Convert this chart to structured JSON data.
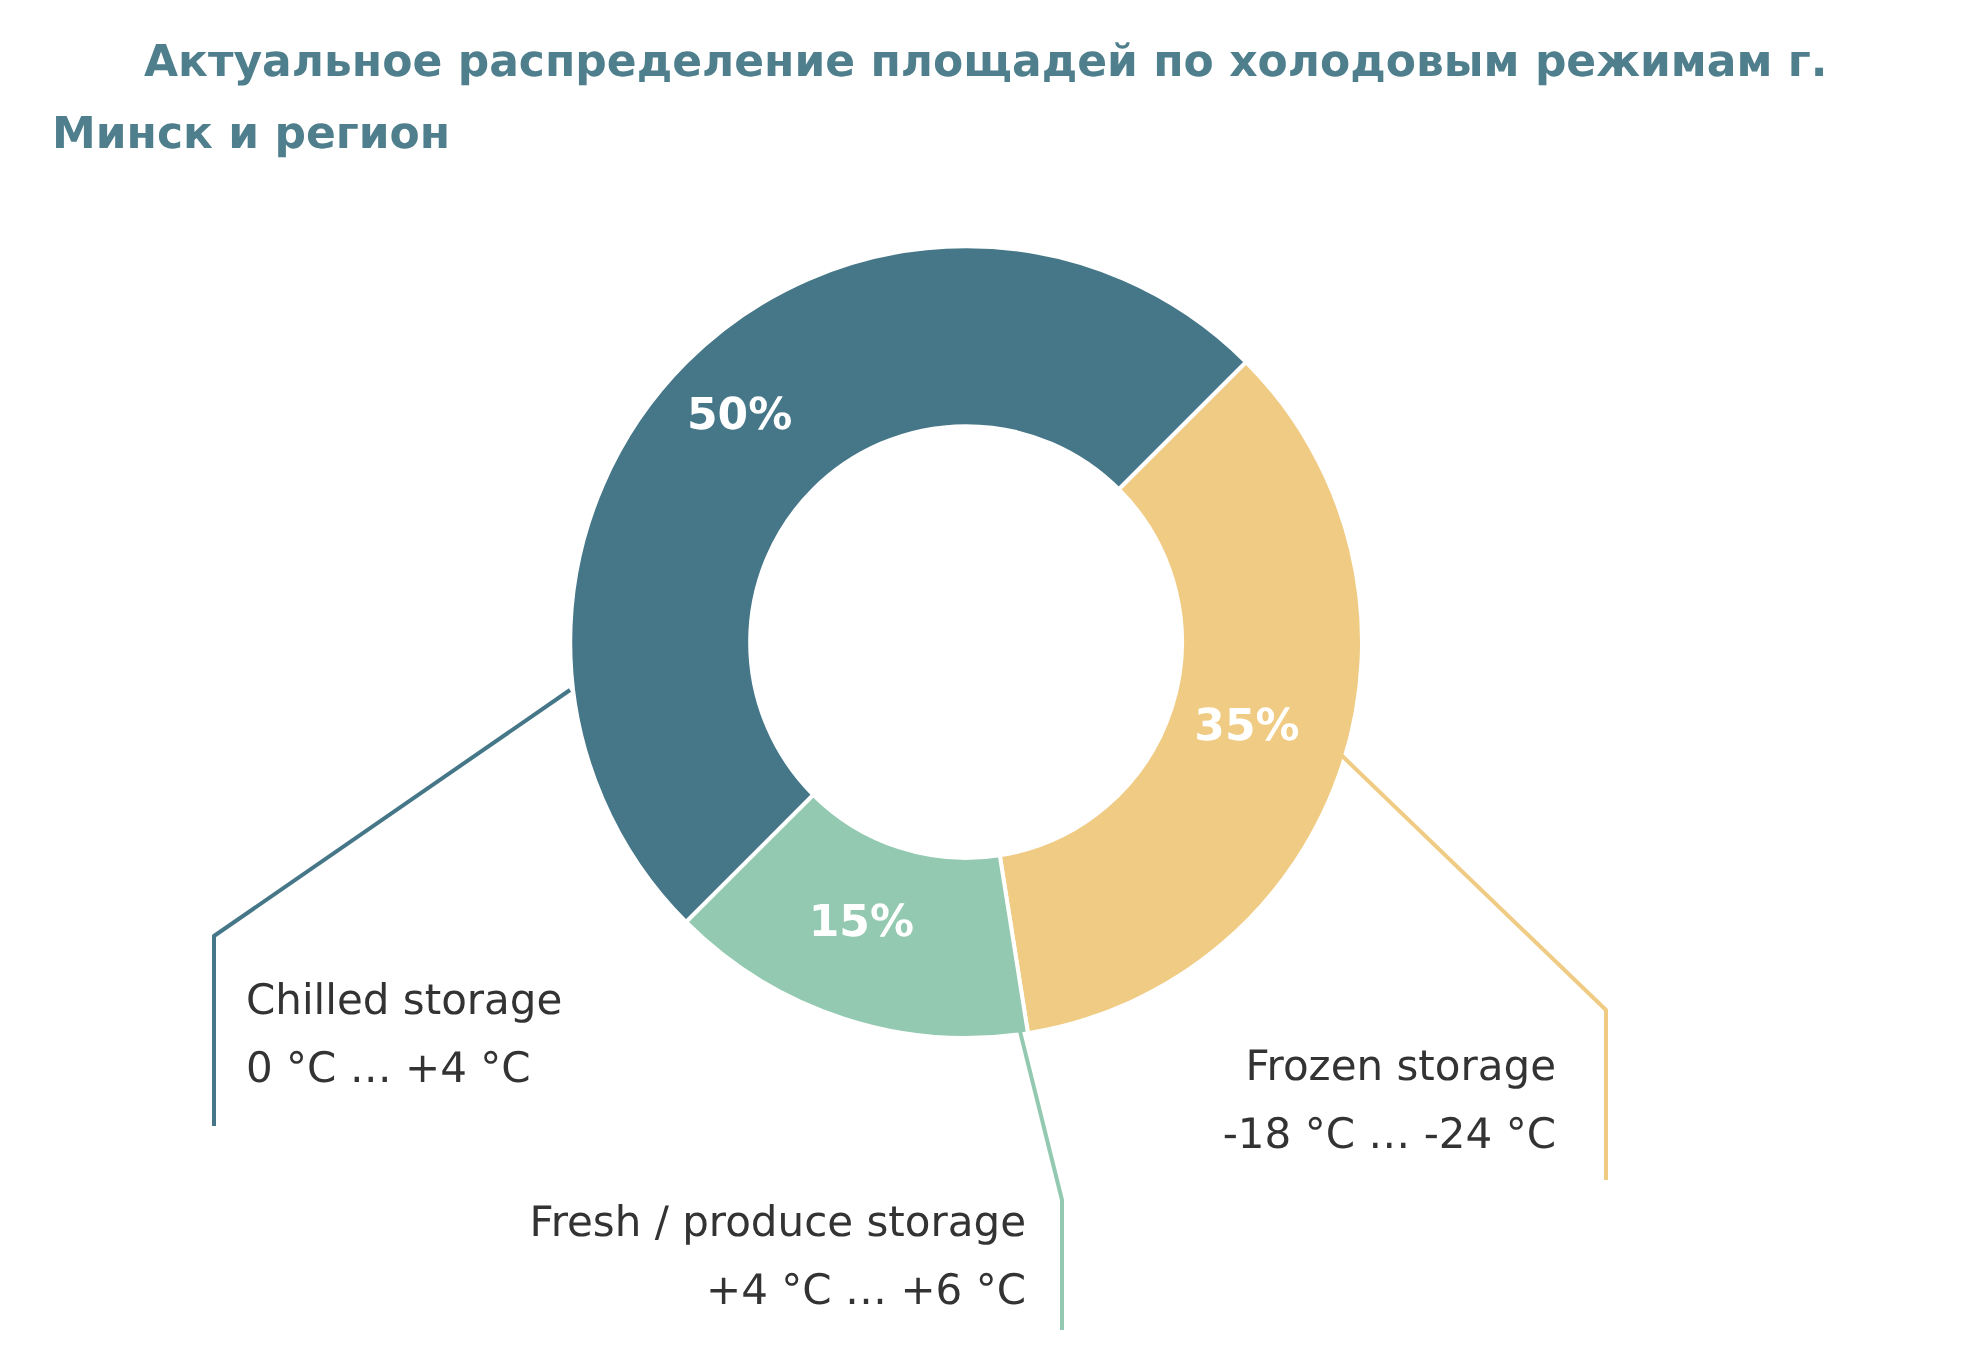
{
  "chart_data": {
    "type": "donut",
    "title": "Актуальное распределение площадей по холодовым режимам г. Минск и регион",
    "categories": [
      "Frozen storage\n-18 °C … -24 °C",
      "Fresh / produce storage\n+4 °C … +6 °C",
      "Chilled storage\n0 °C … +4 °C"
    ],
    "values": [
      35,
      15,
      50
    ],
    "value_labels": [
      "35%",
      "15%",
      "50%"
    ],
    "colors": [
      "#f0cb83",
      "#92c9b0",
      "#457788"
    ],
    "legend": false
  }
}
